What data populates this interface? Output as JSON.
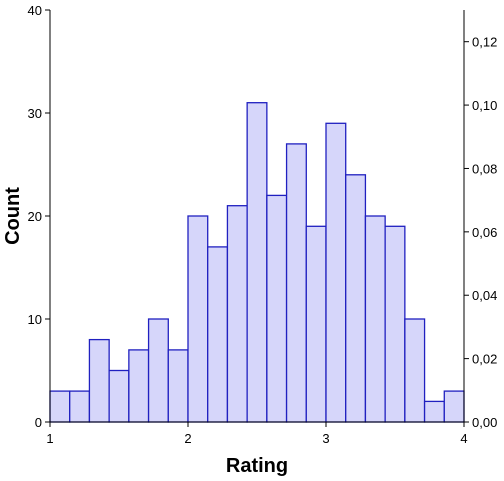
{
  "chart_data": {
    "type": "bar",
    "title": "",
    "xlabel": "Rating",
    "ylabel": "Count",
    "x_range": [
      1,
      4
    ],
    "x_ticks": [
      "1",
      "2",
      "3",
      "4"
    ],
    "bins": {
      "start": 1,
      "width": 0.1428571,
      "counts": [
        3,
        3,
        8,
        5,
        7,
        10,
        7,
        20,
        17,
        21,
        31,
        22,
        27,
        19,
        29,
        24,
        20,
        19,
        10,
        2,
        3
      ]
    },
    "y_left": {
      "range": [
        0,
        40
      ],
      "ticks": [
        "0",
        "10",
        "20",
        "30",
        "40"
      ]
    },
    "y_right": {
      "label": "",
      "range": [
        0,
        0.13
      ],
      "ticks": [
        "0,00",
        "0,02",
        "0,04",
        "0,06",
        "0,08",
        "0,10",
        "0,12"
      ],
      "tick_values": [
        0,
        0.02,
        0.04,
        0.06,
        0.08,
        0.1,
        0.12
      ]
    },
    "colors": {
      "bar_fill": "#d6d6fa",
      "bar_stroke": "#2020c0",
      "axis": "#000000"
    },
    "grid": false,
    "legend": "none"
  }
}
